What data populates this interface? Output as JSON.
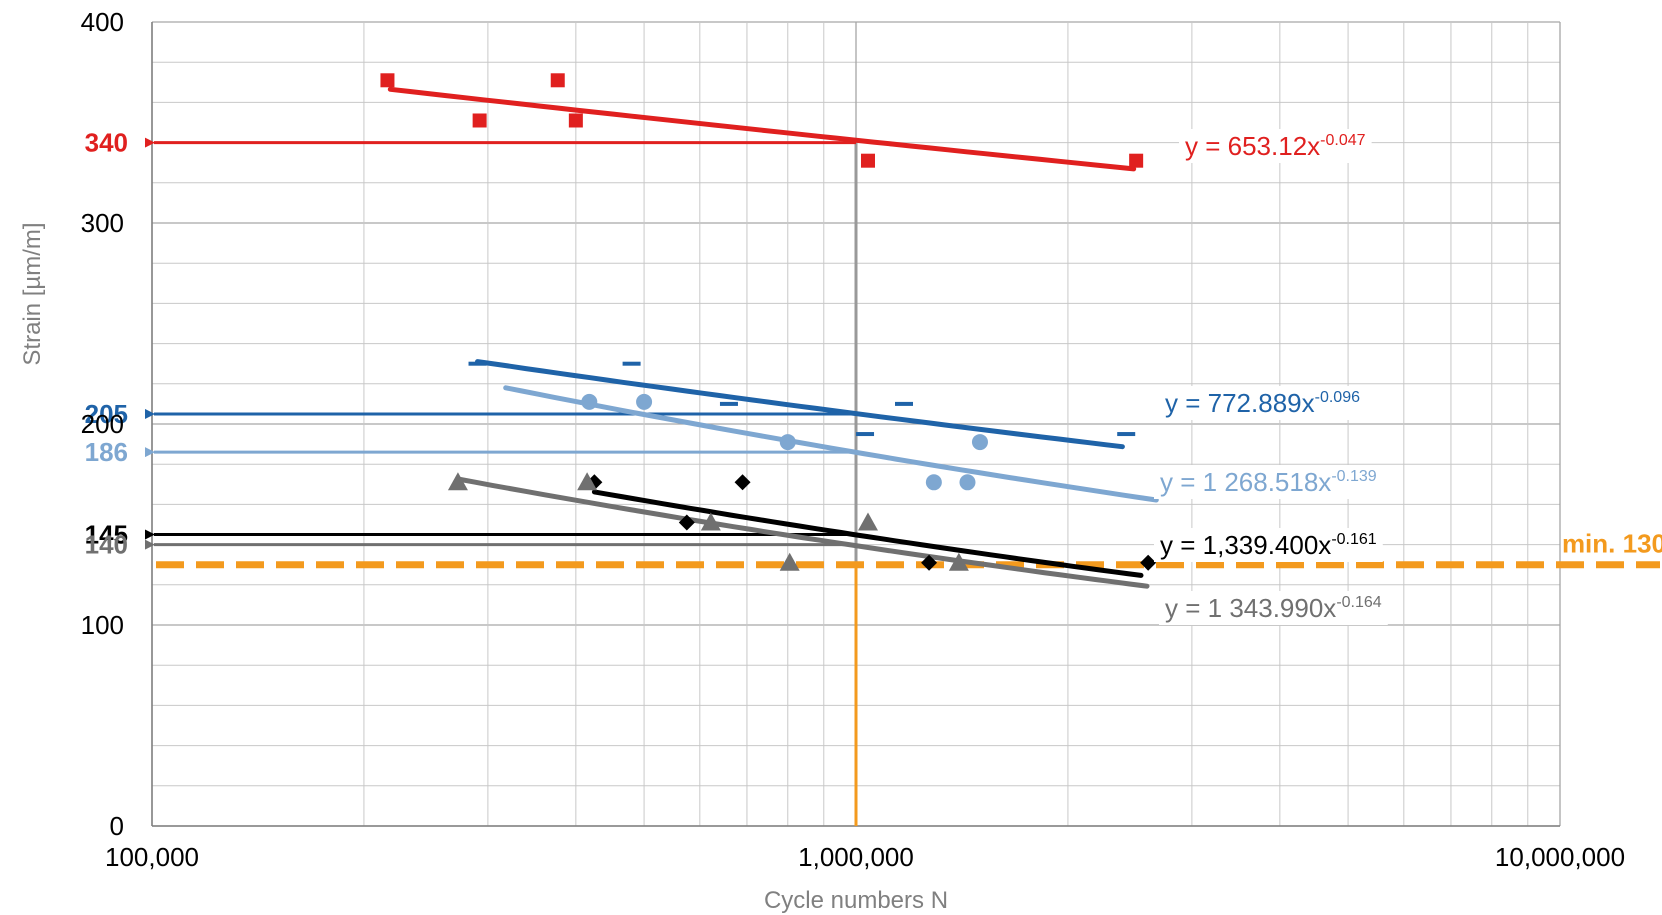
{
  "chart_data": {
    "type": "scatter",
    "x_scale": "log",
    "xlim": [
      100000,
      10000000
    ],
    "ylim": [
      0,
      400
    ],
    "xlabel": "Cycle numbers N",
    "ylabel": "Strain [µm/m]",
    "x_ticks": [
      "100,000",
      "1,000,000",
      "10,000,000"
    ],
    "y_ticks": [
      {
        "value": 0,
        "label": "0"
      },
      {
        "value": 100,
        "label": "100"
      },
      {
        "value": 200,
        "label": "200"
      },
      {
        "value": 300,
        "label": "300"
      },
      {
        "value": 400,
        "label": "400"
      }
    ],
    "grid": true,
    "series": [
      {
        "marker": "square",
        "color": "#E0201F",
        "points": [
          [
            216000,
            371
          ],
          [
            292000,
            351
          ],
          [
            377000,
            371
          ],
          [
            400000,
            351
          ],
          [
            1040000,
            331
          ],
          [
            2500000,
            331
          ]
        ],
        "trendline": {
          "coef": 653.12,
          "exp": -0.047,
          "x_range": [
            218000,
            2480000
          ]
        },
        "equation": {
          "base": "y = 653.12x",
          "sup": "-0.047",
          "color": "#E0201F"
        }
      },
      {
        "marker": "dash",
        "color": "#1F63A8",
        "points": [
          [
            290000,
            230
          ],
          [
            480000,
            230
          ],
          [
            660000,
            210
          ],
          [
            1030000,
            195
          ],
          [
            1170000,
            210
          ],
          [
            2420000,
            195
          ]
        ],
        "trendline": {
          "coef": 772.889,
          "exp": -0.096,
          "x_range": [
            290000,
            2390000
          ]
        },
        "equation": {
          "base": "y = 772.889x",
          "sup": "-0.096",
          "color": "#1F63A8"
        }
      },
      {
        "marker": "circle",
        "color": "#7EA7D1",
        "points": [
          [
            418000,
            211
          ],
          [
            500000,
            211
          ],
          [
            800000,
            191
          ],
          [
            1290000,
            171
          ],
          [
            1440000,
            171
          ],
          [
            1500000,
            191
          ]
        ],
        "trendline": {
          "coef": 1268.518,
          "exp": -0.139,
          "x_range": [
            318000,
            2670000
          ]
        },
        "equation": {
          "base": "y = 1 268.518x",
          "sup": "-0.139",
          "color": "#7EA7D1"
        }
      },
      {
        "marker": "diamond",
        "color": "#000000",
        "points": [
          [
            425000,
            171
          ],
          [
            575000,
            151
          ],
          [
            690000,
            171
          ],
          [
            1270000,
            131
          ],
          [
            2600000,
            131
          ]
        ],
        "trendline": {
          "coef": 1339.4,
          "exp": -0.161,
          "x_range": [
            425000,
            2540000
          ]
        },
        "equation": {
          "base": "y = 1,339.400x",
          "sup": "-0.161",
          "color": "#000000"
        }
      },
      {
        "marker": "triangle",
        "color": "#707070",
        "points": [
          [
            272000,
            171
          ],
          [
            415000,
            171
          ],
          [
            622000,
            151
          ],
          [
            805000,
            131
          ],
          [
            1040000,
            151
          ],
          [
            1400000,
            131
          ]
        ],
        "trendline": {
          "coef": 1343.99,
          "exp": -0.164,
          "x_range": [
            272000,
            2590000
          ]
        },
        "equation": {
          "base": "y = 1 343.990x",
          "sup": "-0.164",
          "color": "#707070"
        }
      }
    ],
    "reference_lines": [
      {
        "label": "340",
        "y": 340,
        "color": "#E0201F"
      },
      {
        "label": "205",
        "y": 205,
        "color": "#1F63A8"
      },
      {
        "label": "186",
        "y": 186,
        "color": "#7EA7D1"
      },
      {
        "label": "145",
        "y": 145,
        "color": "#000000"
      },
      {
        "label": "140",
        "y": 140,
        "color": "#707070"
      }
    ],
    "limit_line": {
      "label": "min. 130",
      "y": 130,
      "color": "#F39A1E"
    },
    "vertical_marker": {
      "x": 1000000,
      "color_upper": "#999999",
      "color_lower": "#F39A1E"
    }
  }
}
